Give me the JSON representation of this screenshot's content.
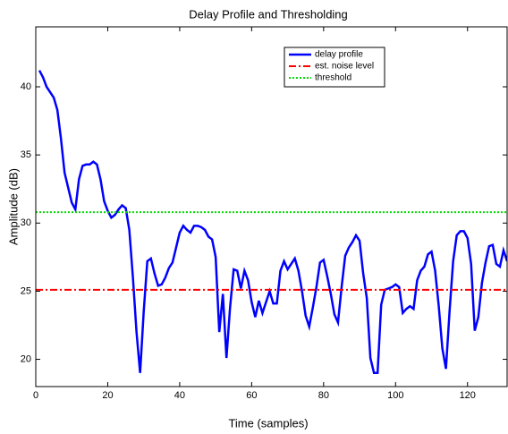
{
  "chart_data": {
    "type": "line",
    "title": "Delay Profile and Thresholding",
    "x_label": "Time (samples)",
    "y_label": "Amplitude (dB)",
    "xlim": [
      0,
      131
    ],
    "ylim": [
      18,
      44.4
    ],
    "xticks": [
      0,
      20,
      40,
      60,
      80,
      100,
      120
    ],
    "yticks": [
      20,
      25,
      30,
      35,
      40
    ],
    "grid": false,
    "legend": "upper right",
    "series": [
      {
        "name": "delay profile",
        "color": "#0000ff",
        "dash": "solid",
        "x": [
          1,
          2,
          3,
          4,
          5,
          6,
          7,
          8,
          9,
          10,
          11,
          12,
          13,
          14,
          15,
          16,
          17,
          18,
          19,
          20,
          21,
          22,
          23,
          24,
          25,
          26,
          27,
          28,
          29,
          30,
          31,
          32,
          33,
          34,
          35,
          36,
          37,
          38,
          39,
          40,
          41,
          42,
          43,
          44,
          45,
          46,
          47,
          48,
          49,
          50,
          51,
          52,
          53,
          54,
          55,
          56,
          57,
          58,
          59,
          60,
          61,
          62,
          63,
          64,
          65,
          66,
          67,
          68,
          69,
          70,
          71,
          72,
          73,
          74,
          75,
          76,
          77,
          78,
          79,
          80,
          81,
          82,
          83,
          84,
          85,
          86,
          87,
          88,
          89,
          90,
          91,
          92,
          93,
          94,
          95,
          96,
          97,
          98,
          99,
          100,
          101,
          102,
          103,
          104,
          105,
          106,
          107,
          108,
          109,
          110,
          111,
          112,
          113,
          114,
          115,
          116,
          117,
          118,
          119,
          120,
          121,
          122,
          123,
          124,
          125,
          126,
          127,
          128,
          129,
          130,
          131
        ],
        "values": [
          41.2,
          40.7,
          40.0,
          39.6,
          39.2,
          38.3,
          36.2,
          33.7,
          32.6,
          31.5,
          31.0,
          33.2,
          34.2,
          34.3,
          34.3,
          34.5,
          34.3,
          33.2,
          31.6,
          30.9,
          30.4,
          30.6,
          31.0,
          31.3,
          31.1,
          29.5,
          26.0,
          22.0,
          19.0,
          23.5,
          27.2,
          27.4,
          26.3,
          25.4,
          25.5,
          26.0,
          26.7,
          27.1,
          28.2,
          29.3,
          29.8,
          29.5,
          29.3,
          29.8,
          29.8,
          29.7,
          29.5,
          29.0,
          28.8,
          27.5,
          22.0,
          24.8,
          20.1,
          23.8,
          26.6,
          26.5,
          25.2,
          26.5,
          25.8,
          24.2,
          23.1,
          24.3,
          23.4,
          24.2,
          25.0,
          24.1,
          24.1,
          26.5,
          27.2,
          26.6,
          27.0,
          27.4,
          26.5,
          25.0,
          23.2,
          22.4,
          23.8,
          25.3,
          27.1,
          27.3,
          26.1,
          24.8,
          23.3,
          22.7,
          25.3,
          27.6,
          28.2,
          28.6,
          29.1,
          28.7,
          26.3,
          24.5,
          20.1,
          19.0,
          19.0,
          24.0,
          25.1,
          25.2,
          25.3,
          25.5,
          25.3,
          23.4,
          23.7,
          23.9,
          23.7,
          25.8,
          26.5,
          26.8,
          27.7,
          27.9,
          26.5,
          23.9,
          20.8,
          19.3,
          23.5,
          27.2,
          29.1,
          29.4,
          29.4,
          28.9,
          27.0,
          22.1,
          23.1,
          25.6,
          27.1,
          28.3,
          28.4,
          27.0,
          26.8,
          28.0,
          27.2
        ]
      },
      {
        "name": "est. noise level",
        "color": "#ff0000",
        "dash": "dashdot",
        "x": [
          0,
          131
        ],
        "values": [
          25.1,
          25.1
        ]
      },
      {
        "name": "threshold",
        "color": "#00dd00",
        "dash": "dotted",
        "x": [
          0,
          131
        ],
        "values": [
          30.8,
          30.8
        ]
      }
    ]
  }
}
